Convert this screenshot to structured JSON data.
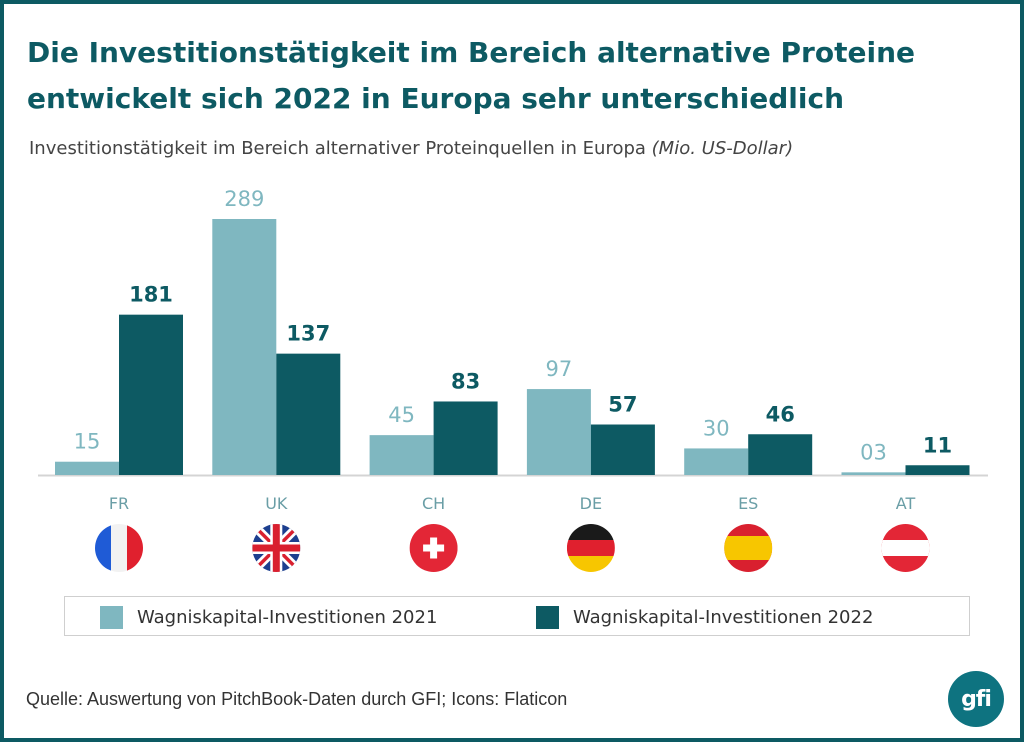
{
  "title": "Die Investitionstätigkeit im Bereich alternative Proteine entwickelt sich 2022 in Europa sehr unterschiedlich",
  "subtitle": "Investitionstätigkeit im Bereich alternativer Proteinquellen in Europa",
  "subtitle_unit": "(Mio. US-Dollar)",
  "source": "Quelle: Auswertung von PitchBook-Daten durch GFI; Icons: Flaticon",
  "logo_text": "gfi",
  "colors": {
    "frame": "#0d5a63",
    "title": "#0d5a63",
    "series_2021": "#7fb7c0",
    "series_2022": "#0d5a63",
    "category_label": "#6a9ea6",
    "logo": "#0e7380"
  },
  "chart_data": {
    "type": "bar",
    "categories": [
      "FR",
      "UK",
      "CH",
      "DE",
      "ES",
      "AT"
    ],
    "flag_icons": [
      "flag-france-icon",
      "flag-uk-icon",
      "flag-switzerland-icon",
      "flag-germany-icon",
      "flag-spain-icon",
      "flag-austria-icon"
    ],
    "series": [
      {
        "name": "Wagniskapital-Investitionen 2021",
        "values": [
          15,
          289,
          45,
          97,
          30,
          3
        ],
        "labels": [
          "15",
          "289",
          "45",
          "97",
          "30",
          "03"
        ]
      },
      {
        "name": "Wagniskapital-Investitionen 2022",
        "values": [
          181,
          137,
          83,
          57,
          46,
          11
        ],
        "labels": [
          "181",
          "137",
          "83",
          "57",
          "46",
          "11"
        ]
      }
    ],
    "ylim": [
      0,
      289
    ],
    "grid": false,
    "legend_position": "bottom"
  }
}
